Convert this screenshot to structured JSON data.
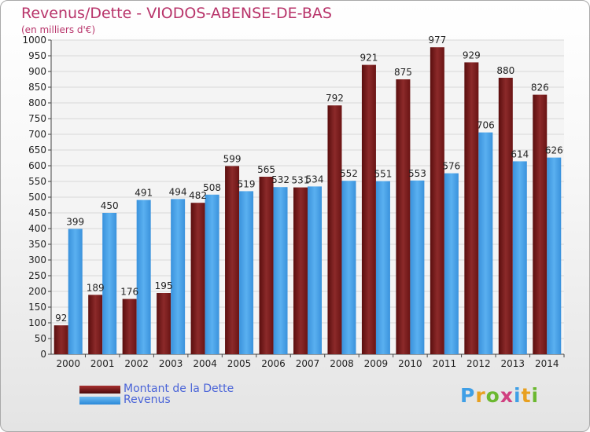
{
  "chart_data": {
    "type": "bar",
    "title": "Revenus/Dette - VIODOS-ABENSE-DE-BAS",
    "subtitle": "(en milliers d'€)",
    "categories": [
      "2000",
      "2001",
      "2002",
      "2003",
      "2004",
      "2005",
      "2006",
      "2007",
      "2008",
      "2009",
      "2010",
      "2011",
      "2012",
      "2013",
      "2014"
    ],
    "series": [
      {
        "name": "Montant de la Dette",
        "color": "#7a1a1a",
        "values": [
          92,
          189,
          176,
          195,
          482,
          599,
          565,
          531,
          792,
          921,
          875,
          977,
          929,
          880,
          826
        ]
      },
      {
        "name": "Revenus",
        "color": "#3f9fe6",
        "values": [
          399,
          450,
          491,
          494,
          508,
          519,
          532,
          534,
          552,
          551,
          553,
          576,
          706,
          614,
          626
        ]
      }
    ],
    "ylim": [
      0,
      1000
    ],
    "yticks": [
      0,
      50,
      100,
      150,
      200,
      250,
      300,
      350,
      400,
      450,
      500,
      550,
      600,
      650,
      700,
      750,
      800,
      850,
      900,
      950,
      1000
    ],
    "grid": true,
    "legend_position": "bottom-left"
  },
  "legend": {
    "debt_label": "Montant de la Dette",
    "revenue_label": "Revenus"
  },
  "logo": {
    "letters": [
      "P",
      "r",
      "o",
      "x",
      "i",
      "t",
      "i"
    ],
    "colors": [
      "#3f9fe6",
      "#e8a020",
      "#6bb830",
      "#d04080",
      "#3f9fe6",
      "#e8a020",
      "#6bb830"
    ]
  }
}
